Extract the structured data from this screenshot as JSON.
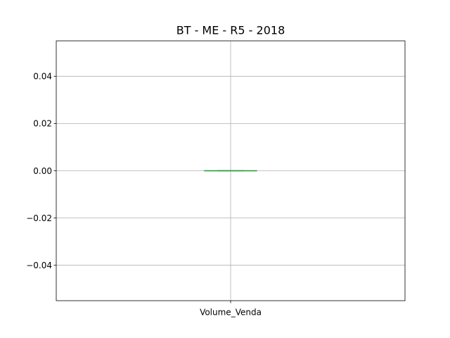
{
  "chart_data": {
    "type": "box",
    "title": "BT - ME - R5 - 2018",
    "categories": [
      "Volume_Venda"
    ],
    "series": [
      {
        "category": "Volume_Venda",
        "min": 0.0,
        "q1": 0.0,
        "median": 0.0,
        "q3": 0.0,
        "max": 0.0
      }
    ],
    "ylim": [
      -0.055,
      0.055
    ],
    "yticks": [
      -0.04,
      -0.02,
      0.0,
      0.02,
      0.04
    ],
    "ytick_labels": [
      "−0.04",
      "−0.02",
      "0.00",
      "0.02",
      "0.04"
    ],
    "grid": true,
    "colors": {
      "box": "#1f77b4",
      "median": "#2ca02c",
      "whisker": "#1f77b4",
      "grid": "#b0b0b0"
    }
  }
}
